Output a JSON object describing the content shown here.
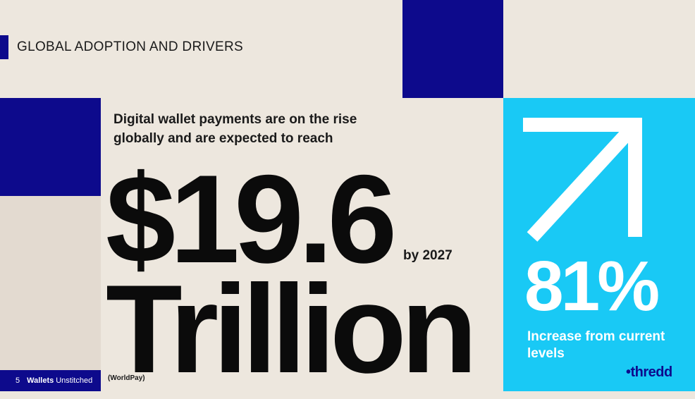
{
  "heading": "GLOBAL ADOPTION AND DRIVERS",
  "intro": "Digital wallet payments are on the rise globally and are expected to reach",
  "headline": {
    "amount": "$19.6",
    "unit": "Trillion",
    "year": "by 2027"
  },
  "stat": {
    "value": "81%",
    "caption": "Increase from current levels"
  },
  "brand": "•thredd",
  "footer": {
    "page_number": "5",
    "title_bold": "Wallets",
    "title_regular": "Unstitched"
  },
  "source": "(WorldPay)",
  "icons": {
    "growth": "diagonal-up-arrow-icon"
  },
  "colors": {
    "navy": "#0d0a8c",
    "sky": "#19c9f5",
    "beige": "#ede7de"
  }
}
